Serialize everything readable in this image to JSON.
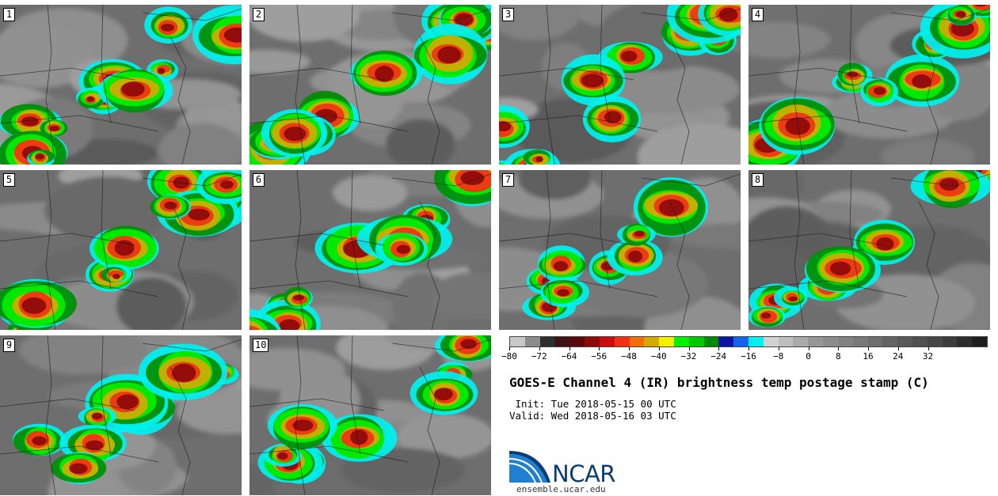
{
  "panels": [
    {
      "label": "1"
    },
    {
      "label": "2"
    },
    {
      "label": "3"
    },
    {
      "label": "4"
    },
    {
      "label": "5"
    },
    {
      "label": "6"
    },
    {
      "label": "7"
    },
    {
      "label": "8"
    },
    {
      "label": "9"
    },
    {
      "label": "10"
    }
  ],
  "colorbar": {
    "colors": [
      "#c8c8c8",
      "#8c8c8c",
      "#2e2e2e",
      "#3c1414",
      "#5a0a0a",
      "#8c0a0a",
      "#c80f0f",
      "#f03214",
      "#f06e0a",
      "#d2aa00",
      "#f0f000",
      "#00f000",
      "#00c800",
      "#008c00",
      "#0a14a0",
      "#1464f0",
      "#00f0f0",
      "#d2d2d2",
      "#bebebe",
      "#aaaaaa",
      "#969696",
      "#8c8c8c",
      "#828282",
      "#787878",
      "#6e6e6e",
      "#646464",
      "#5a5a5a",
      "#505050",
      "#464646",
      "#3c3c3c",
      "#2d2d2d",
      "#1e1e1e"
    ],
    "ticks": [
      "−80",
      "−72",
      "−64",
      "−56",
      "−48",
      "−40",
      "−32",
      "−24",
      "−16",
      "−8",
      "0",
      "8",
      "16",
      "24",
      "32"
    ]
  },
  "title": "GOES-E Channel 4 (IR) brightness temp postage stamp (C)",
  "init_line": " Init: Tue 2018-05-15 00 UTC",
  "valid_line": "Valid: Wed 2018-05-16 03 UTC",
  "logo": {
    "text": "NCAR",
    "url": "ensemble.ucar.edu",
    "primary_color": "#0a3d78",
    "secondary_color": "#1f7fd0"
  }
}
